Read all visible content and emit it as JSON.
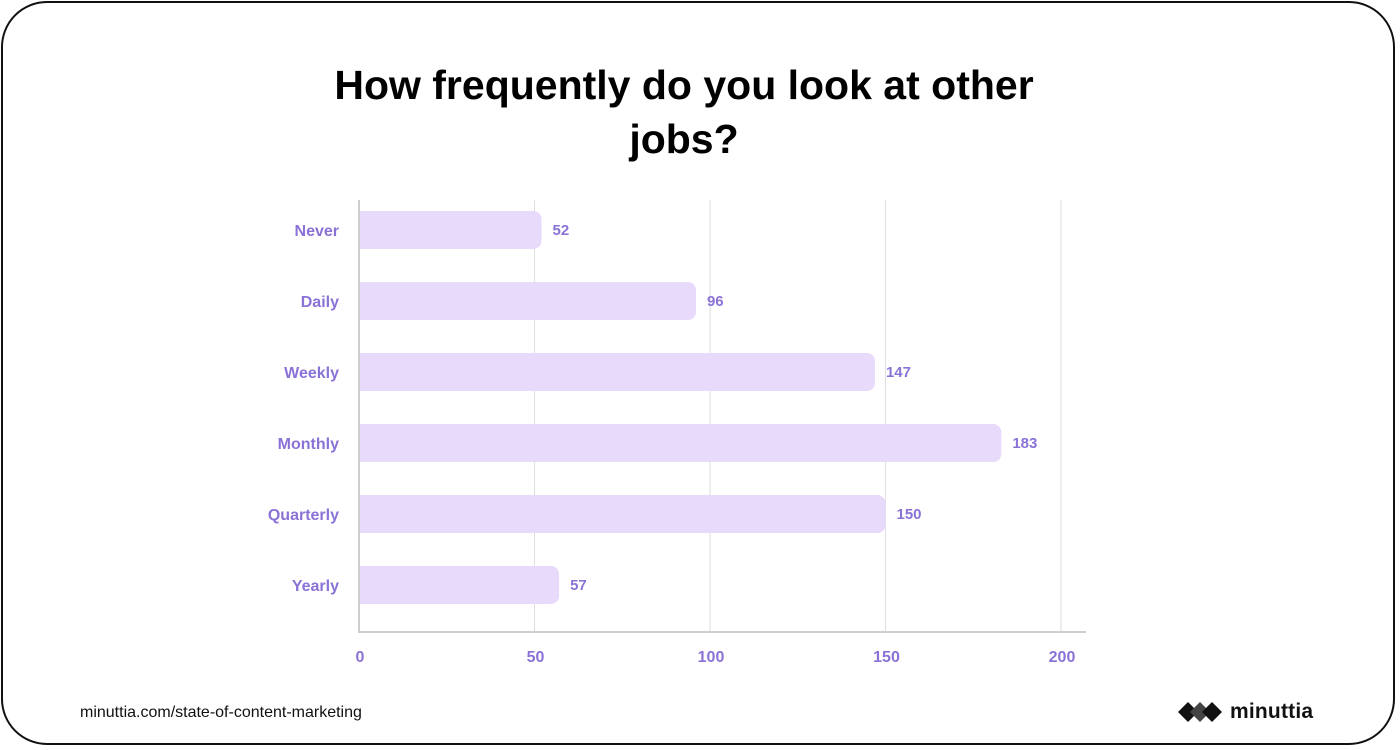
{
  "colors": {
    "bar": "#e8dafb",
    "label": "#8a72d6",
    "grid": "#dedede",
    "axis": "#cfcfcf"
  },
  "footer": {
    "url": "minuttia.com/state-of-content-marketing",
    "brand": "minuttia"
  },
  "chart_data": {
    "type": "bar",
    "orientation": "horizontal",
    "title": "How frequently do you look at other jobs?",
    "xlabel": "",
    "ylabel": "",
    "categories": [
      "Never",
      "Daily",
      "Weekly",
      "Monthly",
      "Quarterly",
      "Yearly"
    ],
    "values": [
      52,
      96,
      147,
      183,
      150,
      57
    ],
    "xlim": [
      0,
      200
    ],
    "xticks": [
      0,
      50,
      100,
      150,
      200
    ],
    "grid": true,
    "legend": "none",
    "data_labels": true
  }
}
